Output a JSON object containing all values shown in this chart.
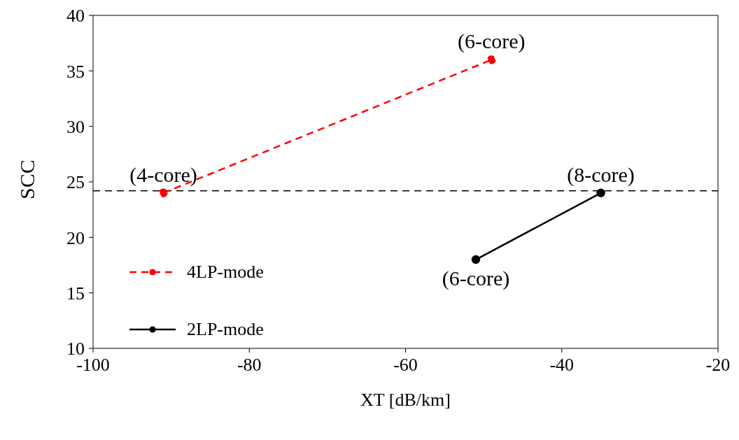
{
  "chart_data": {
    "type": "line",
    "xlabel": "XT [dB/km]",
    "ylabel": "SCC",
    "xlim": [
      -100,
      -20
    ],
    "xticks": [
      -100,
      -80,
      -60,
      -40,
      -20
    ],
    "ylim": [
      10,
      40
    ],
    "yticks": [
      10,
      15,
      20,
      25,
      30,
      35,
      40
    ],
    "grid": false,
    "legend": "left",
    "marker": "circle",
    "series": [
      {
        "name": "4LP-mode",
        "color": "#ff0000",
        "line_style": "dashed",
        "x": [
          -91,
          -49
        ],
        "values": [
          24,
          36
        ]
      },
      {
        "name": "2LP-mode",
        "color": "#000000",
        "line_style": "solid",
        "x": [
          -51,
          -35
        ],
        "values": [
          18,
          24
        ]
      }
    ],
    "ref_lines": [
      {
        "axis": "y",
        "value": 24.2,
        "color": "#000000",
        "line_style": "dashed"
      }
    ],
    "annotations": [
      {
        "text": "(4-core)",
        "x": -91,
        "y": 24
      },
      {
        "text": "(6-core)",
        "x": -49,
        "y": 36
      },
      {
        "text": "(8-core)",
        "x": -35,
        "y": 24
      },
      {
        "text": "(6-core)",
        "x": -51,
        "y": 18
      }
    ]
  }
}
